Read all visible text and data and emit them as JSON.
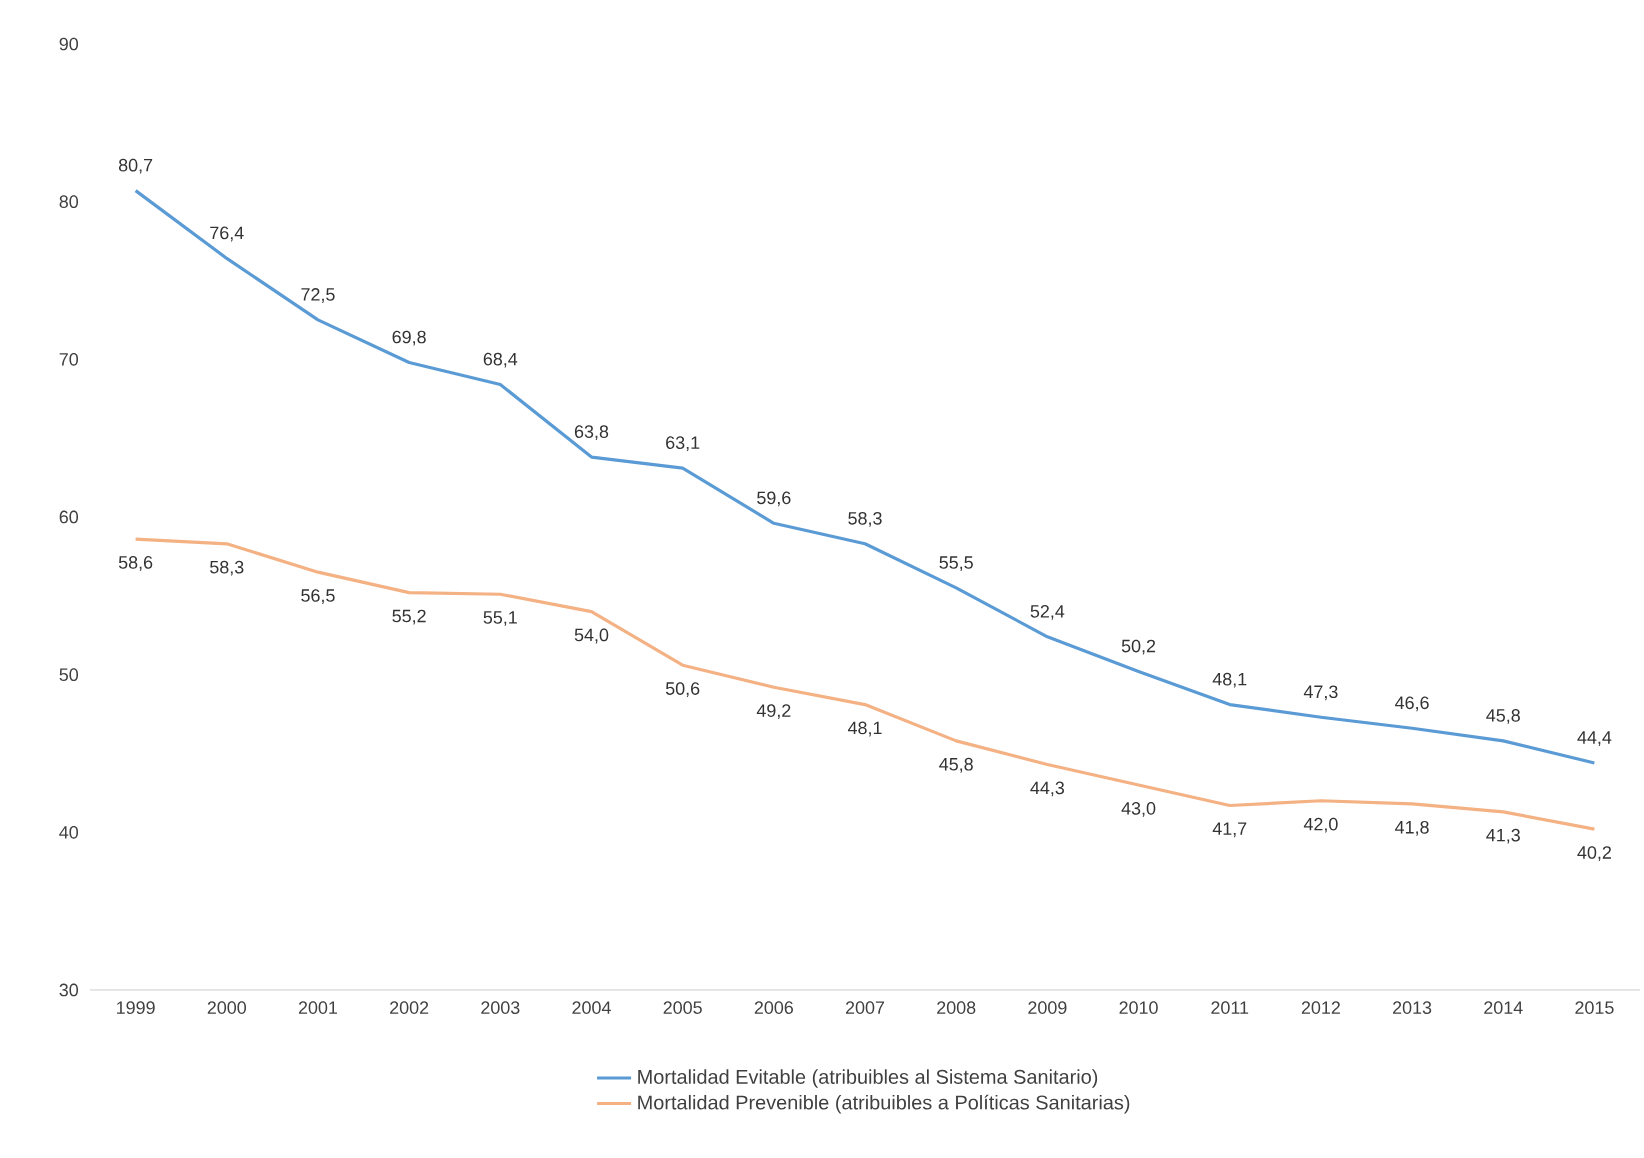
{
  "chart_data": {
    "type": "line",
    "categories": [
      "1999",
      "2000",
      "2001",
      "2002",
      "2003",
      "2004",
      "2005",
      "2006",
      "2007",
      "2008",
      "2009",
      "2010",
      "2011",
      "2012",
      "2013",
      "2014",
      "2015"
    ],
    "series": [
      {
        "name": "Mortalidad Evitable (atribuibles al Sistema Sanitario)",
        "color": "#5b9bd5",
        "values": [
          80.7,
          76.4,
          72.5,
          69.8,
          68.4,
          63.8,
          63.1,
          59.6,
          58.3,
          55.5,
          52.4,
          50.2,
          48.1,
          47.3,
          46.6,
          45.8,
          44.4
        ],
        "value_labels": [
          "80,7",
          "76,4",
          "72,5",
          "69,8",
          "68,4",
          "63,8",
          "63,1",
          "59,6",
          "58,3",
          "55,5",
          "52,4",
          "50,2",
          "48,1",
          "47,3",
          "46,6",
          "45,8",
          "44,4"
        ]
      },
      {
        "name": "Mortalidad Prevenible (atribuibles a Políticas Sanitarias)",
        "color": "#f4b183",
        "values": [
          58.6,
          58.3,
          56.5,
          55.2,
          55.1,
          54.0,
          50.6,
          49.2,
          48.1,
          45.8,
          44.3,
          43.0,
          41.7,
          42.0,
          41.8,
          41.3,
          40.2
        ],
        "value_labels": [
          "58,6",
          "58,3",
          "56,5",
          "55,2",
          "55,1",
          "54,0",
          "50,6",
          "49,2",
          "48,1",
          "45,8",
          "44,3",
          "43,0",
          "41,7",
          "42,0",
          "41,8",
          "41,3",
          "40,2"
        ]
      }
    ],
    "ylim": [
      30,
      90
    ],
    "yticks": [
      30,
      40,
      50,
      60,
      70,
      80,
      90
    ],
    "grid": false,
    "legend": "bottom",
    "marker": "none",
    "line_style": "solid"
  }
}
